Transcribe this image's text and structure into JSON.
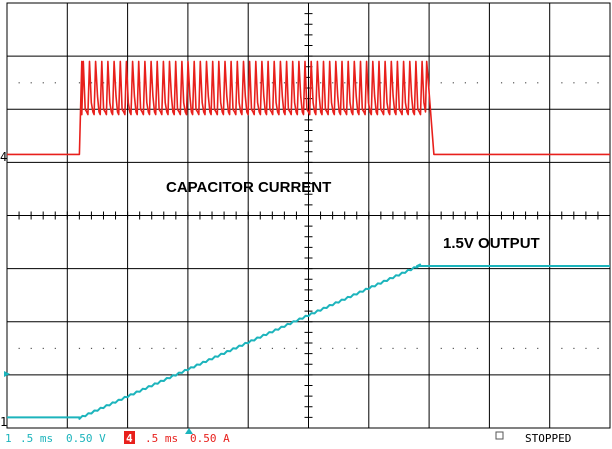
{
  "chart_data": {
    "type": "line",
    "title": "",
    "xlabel": "",
    "ylabel": "",
    "x_unit": "ms",
    "xlim": [
      0,
      5
    ],
    "ylim": [
      -4,
      4
    ],
    "grid": true,
    "grid_divisions": {
      "x": 10,
      "y": 8
    },
    "series": [
      {
        "key": "ch4",
        "color": "#e8201c",
        "marker_label": "4",
        "baseline_div": 1.15,
        "x": [
          0.0,
          0.6,
          0.62,
          3.48,
          3.5,
          5.0
        ],
        "y": [
          1.15,
          1.15,
          2.9,
          2.9,
          1.15,
          1.15
        ],
        "ripple": {
          "x_start": 0.62,
          "x_end": 3.48,
          "pulse_count": 56,
          "peak_div": 2.0
        }
      },
      {
        "key": "ch1",
        "color": "#1cb4bc",
        "marker_label": "1",
        "x": [
          0.0,
          0.6,
          3.4,
          5.0
        ],
        "y": [
          -3.8,
          -3.8,
          -0.95,
          -0.95
        ]
      }
    ],
    "annotations": [
      {
        "text": "CAPACITOR CURRENT",
        "x": 2.35,
        "y": 0.6
      },
      {
        "text": "1.5V OUTPUT",
        "x": 4.45,
        "y": -0.55
      }
    ]
  },
  "status_bar": {
    "ch1": {
      "number": "1",
      "timebase": ".5 ms",
      "scale": "0.50 V",
      "color": "#1cb4bc"
    },
    "ch4": {
      "number": "4",
      "timebase": ".5 ms",
      "scale": "0.50 A",
      "color": "#e8201c"
    },
    "state": "STOPPED",
    "grid_color": "#000000",
    "background_color": "#ffffff"
  }
}
